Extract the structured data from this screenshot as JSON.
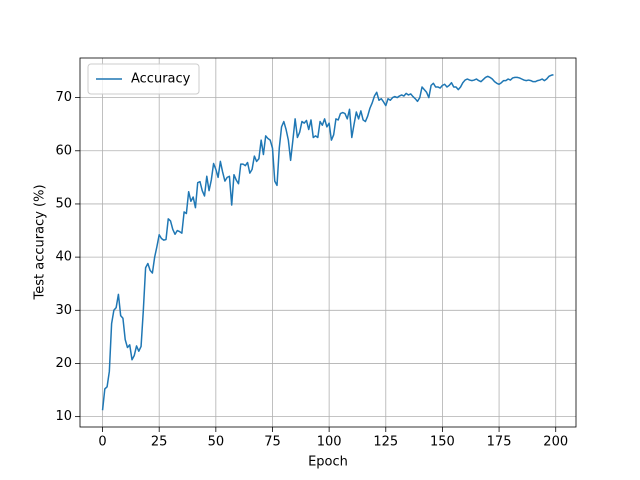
{
  "chart_data": {
    "type": "line",
    "x_label": "Epoch",
    "y_label": "Test accuracy (%)",
    "x": [
      0,
      1,
      2,
      3,
      4,
      5,
      6,
      7,
      8,
      9,
      10,
      11,
      12,
      13,
      14,
      15,
      16,
      17,
      18,
      19,
      20,
      21,
      22,
      23,
      24,
      25,
      26,
      27,
      28,
      29,
      30,
      31,
      32,
      33,
      34,
      35,
      36,
      37,
      38,
      39,
      40,
      41,
      42,
      43,
      44,
      45,
      46,
      47,
      48,
      49,
      50,
      51,
      52,
      53,
      54,
      55,
      56,
      57,
      58,
      59,
      60,
      61,
      62,
      63,
      64,
      65,
      66,
      67,
      68,
      69,
      70,
      71,
      72,
      73,
      74,
      75,
      76,
      77,
      78,
      79,
      80,
      81,
      82,
      83,
      84,
      85,
      86,
      87,
      88,
      89,
      90,
      91,
      92,
      93,
      94,
      95,
      96,
      97,
      98,
      99,
      100,
      101,
      102,
      103,
      104,
      105,
      106,
      107,
      108,
      109,
      110,
      111,
      112,
      113,
      114,
      115,
      116,
      117,
      118,
      119,
      120,
      121,
      122,
      123,
      124,
      125,
      126,
      127,
      128,
      129,
      130,
      131,
      132,
      133,
      134,
      135,
      136,
      137,
      138,
      139,
      140,
      141,
      142,
      143,
      144,
      145,
      146,
      147,
      148,
      149,
      150,
      151,
      152,
      153,
      154,
      155,
      156,
      157,
      158,
      159,
      160,
      161,
      162,
      163,
      164,
      165,
      166,
      167,
      168,
      169,
      170,
      171,
      172,
      173,
      174,
      175,
      176,
      177,
      178,
      179,
      180,
      181,
      182,
      183,
      184,
      185,
      186,
      187,
      188,
      189,
      190,
      191,
      192,
      193,
      194,
      195,
      196,
      197,
      198,
      199
    ],
    "series": [
      {
        "name": "Accuracy",
        "color": "#1f77b4",
        "values": [
          11.2,
          15.2,
          15.6,
          18.5,
          27.5,
          30,
          30.5,
          33,
          29,
          28.5,
          24.5,
          23,
          23.5,
          20.7,
          21.5,
          23.3,
          22.3,
          23.2,
          30,
          38,
          38.8,
          37.5,
          37,
          40,
          42,
          44.2,
          43.5,
          43.2,
          43.3,
          47.2,
          46.8,
          45.2,
          44.3,
          45,
          44.8,
          44.5,
          48.5,
          48.2,
          52.3,
          50.5,
          51.3,
          49.3,
          54,
          54.2,
          52.5,
          51.5,
          55.2,
          52.5,
          54.5,
          57.6,
          56.5,
          55,
          58,
          56,
          54.3,
          55,
          55.2,
          49.8,
          55.5,
          54.5,
          53.8,
          57.5,
          57.5,
          57.2,
          57.8,
          55.8,
          56.5,
          59,
          58,
          58.5,
          62,
          59.3,
          62.8,
          62.3,
          62,
          60.5,
          54.3,
          53.5,
          60.5,
          64.5,
          65.5,
          64,
          62,
          58.2,
          62,
          66,
          62.5,
          63.5,
          65.5,
          65.2,
          65.7,
          64,
          65.8,
          62.5,
          62.8,
          62.5,
          65.5,
          64.8,
          66,
          64.5,
          65.2,
          62,
          63,
          66,
          65.8,
          67,
          67.2,
          67,
          66,
          67.8,
          62.5,
          65,
          67.3,
          66,
          67.5,
          65.8,
          65.5,
          66.5,
          68,
          69,
          70.3,
          71,
          69.5,
          69.8,
          69.2,
          68.5,
          69.8,
          69.5,
          70,
          70.2,
          70,
          70.3,
          70.5,
          70.3,
          70.8,
          70.5,
          70.7,
          70.2,
          69.8,
          69.3,
          70,
          72,
          71.5,
          71,
          70,
          72.3,
          72.7,
          72,
          72,
          71.8,
          72.3,
          72.5,
          72,
          72.3,
          72.8,
          72,
          72,
          71.5,
          72,
          72.8,
          73.3,
          73.5,
          73.3,
          73.2,
          73.3,
          73.5,
          73.2,
          73,
          73.4,
          73.8,
          74,
          73.8,
          73.5,
          73,
          72.7,
          72.5,
          72.8,
          73.2,
          73.2,
          73.5,
          73.3,
          73.7,
          73.8,
          73.8,
          73.7,
          73.5,
          73.3,
          73.2,
          73.3,
          73.2,
          73,
          73,
          73.2,
          73.3,
          73.5,
          73.2,
          73.5,
          74,
          74.2,
          74.3
        ]
      }
    ],
    "xlim": [
      -9.95,
      208.95
    ],
    "xticks": [
      0,
      25,
      50,
      75,
      100,
      125,
      150,
      175,
      200
    ],
    "ylim": [
      8.05,
      77.45
    ],
    "yticks": [
      10,
      20,
      30,
      40,
      50,
      60,
      70
    ],
    "grid": true,
    "legend": "upper left"
  }
}
